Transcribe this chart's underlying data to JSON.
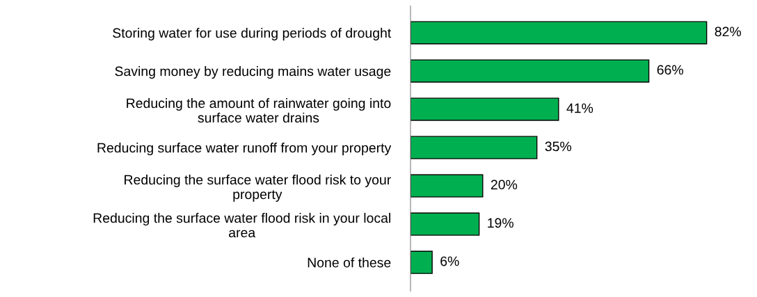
{
  "chart_data": {
    "type": "bar",
    "orientation": "horizontal",
    "categories": [
      "Storing water for use during periods of drought",
      "Saving money by reducing mains water usage",
      "Reducing the amount of rainwater going into\nsurface water drains",
      "Reducing surface water runoff from your property",
      "Reducing the surface water flood risk to your\nproperty",
      "Reducing the surface water flood risk in your local\narea",
      "None of these"
    ],
    "values": [
      82,
      66,
      41,
      35,
      20,
      19,
      6
    ],
    "value_labels": [
      "82%",
      "66%",
      "41%",
      "35%",
      "20%",
      "19%",
      "6%"
    ],
    "color": "#00b050",
    "grid": false,
    "legend": false
  }
}
